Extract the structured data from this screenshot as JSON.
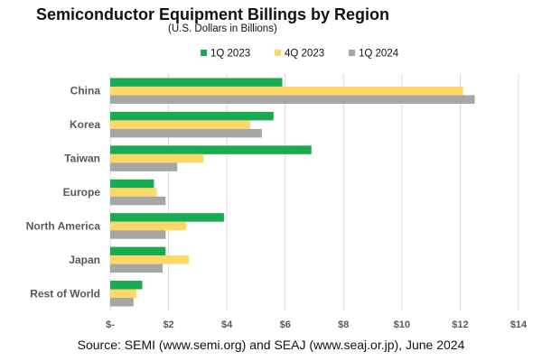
{
  "chart_data": {
    "type": "bar",
    "orientation": "horizontal",
    "title": "Semiconductor Equipment Billings by Region",
    "subtitle": "(U.S. Dollars in Billions)",
    "categories": [
      "China",
      "Korea",
      "Taiwan",
      "Europe",
      "North America",
      "Japan",
      "Rest of World"
    ],
    "series": [
      {
        "name": "1Q 2023",
        "color": "#1aab50",
        "values": [
          5.9,
          5.6,
          6.9,
          1.5,
          3.9,
          1.9,
          1.1
        ]
      },
      {
        "name": "4Q 2023",
        "color": "#fdd868",
        "values": [
          12.1,
          4.8,
          3.2,
          1.6,
          2.6,
          2.7,
          0.9
        ]
      },
      {
        "name": "1Q 2024",
        "color": "#a6a6a6",
        "values": [
          12.5,
          5.2,
          2.3,
          1.9,
          1.9,
          1.8,
          0.8
        ]
      }
    ],
    "xlim": [
      0,
      14
    ],
    "xticks": [
      0,
      2,
      4,
      6,
      8,
      10,
      12,
      14
    ],
    "xtick_labels": [
      "$-",
      "$2",
      "$4",
      "$6",
      "$8",
      "$10",
      "$12",
      "$14"
    ],
    "grid": true,
    "legend_position": "top-right",
    "source": "Source: SEMI (www.semi.org) and SEAJ (www.seaj.or.jp), June 2024"
  }
}
